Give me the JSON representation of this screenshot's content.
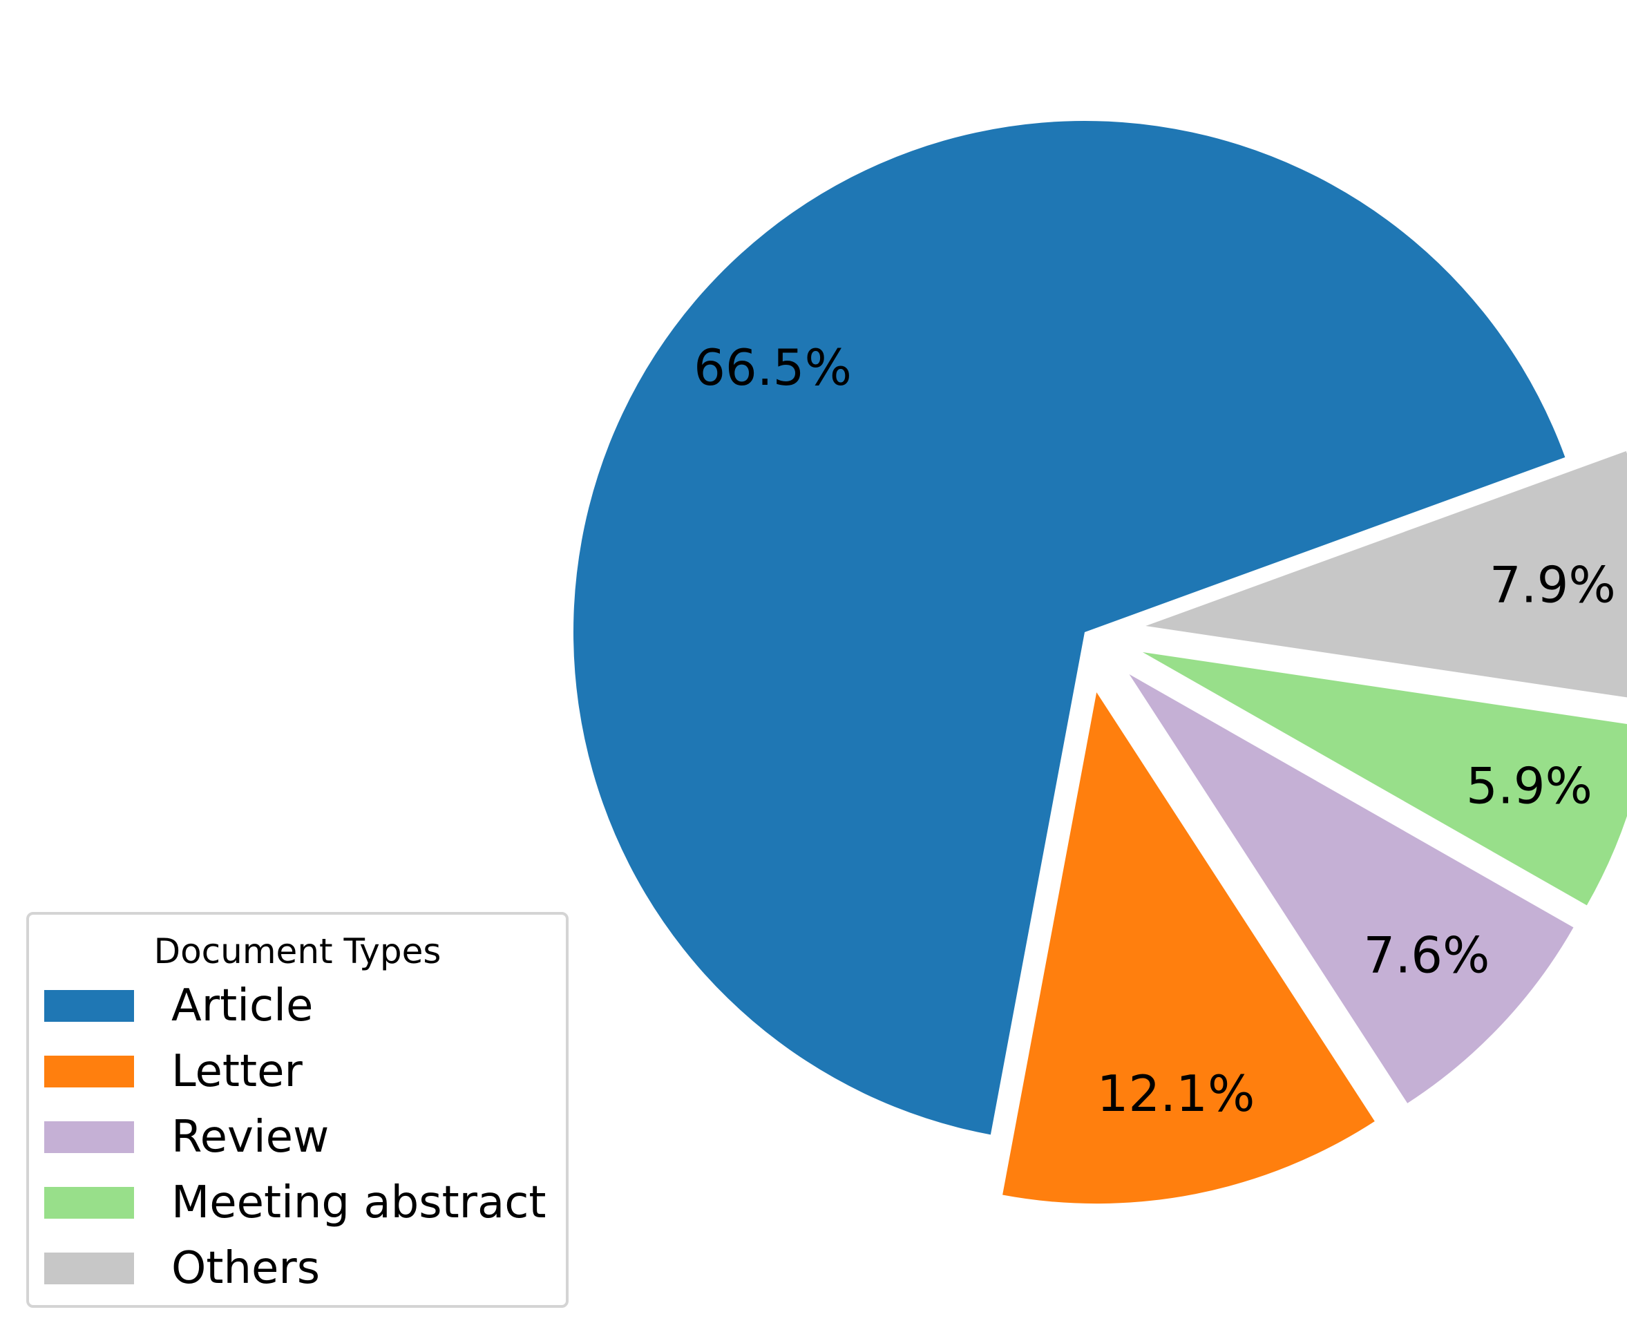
{
  "chart_data": {
    "type": "pie",
    "categories": [
      "Article",
      "Letter",
      "Review",
      "Meeting abstract",
      "Others"
    ],
    "values": [
      66.5,
      12.1,
      7.6,
      5.9,
      7.9
    ],
    "labels": [
      "66.5%",
      "12.1%",
      "7.6%",
      "5.9%",
      "7.9%"
    ],
    "colors": [
      "#1f77b4",
      "#ff7f0e",
      "#c5b0d5",
      "#98df8a",
      "#c7c7c7"
    ],
    "exploded": [
      false,
      true,
      true,
      true,
      true
    ],
    "legend": {
      "title": "Document Types",
      "placement": "lower-left"
    }
  }
}
